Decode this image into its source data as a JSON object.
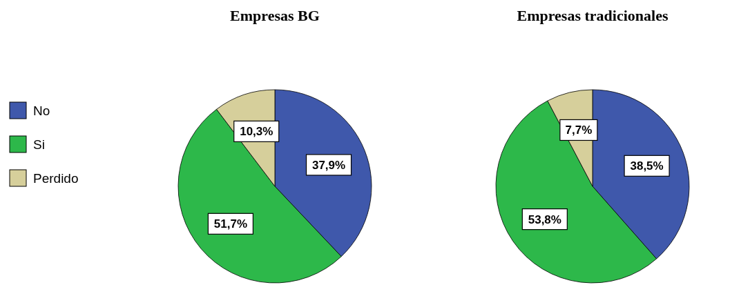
{
  "chart_data": [
    {
      "type": "pie",
      "title": "Empresas BG",
      "categories": [
        "No",
        "Si",
        "Perdido"
      ],
      "values": [
        37.9,
        51.7,
        10.3
      ],
      "colors": [
        "#3f58ab",
        "#2db84a",
        "#d6cf9b"
      ],
      "value_labels": [
        "37,9%",
        "51,7%",
        "10,3%"
      ],
      "legend": "left"
    },
    {
      "type": "pie",
      "title": "Empresas tradicionales",
      "categories": [
        null,
        null,
        null
      ],
      "values": [
        38.5,
        53.8,
        7.7
      ],
      "colors": [
        "#3f58ab",
        "#2db84a",
        "#d6cf9b"
      ],
      "value_labels": [
        "38,5%",
        "53,8%",
        "7,7%"
      ]
    }
  ]
}
